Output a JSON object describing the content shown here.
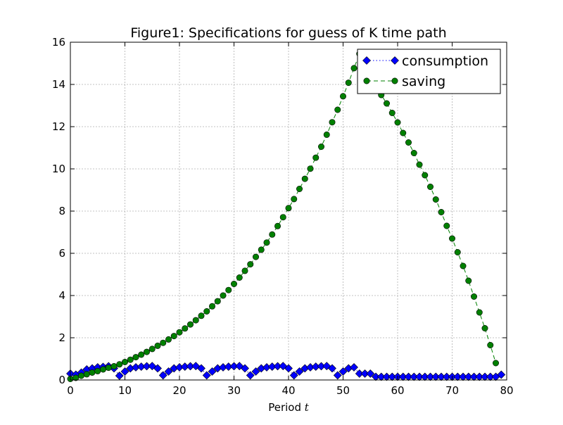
{
  "chart_data": {
    "type": "line",
    "title": "Figure1: Specifications for guess of K time path",
    "xlabel": "Period",
    "xlabel_var": "t",
    "ylabel": "",
    "xlim": [
      0,
      80
    ],
    "ylim": [
      0,
      16
    ],
    "xticks": [
      0,
      10,
      20,
      30,
      40,
      50,
      60,
      70,
      80
    ],
    "yticks": [
      0,
      2,
      4,
      6,
      8,
      10,
      12,
      14,
      16
    ],
    "grid": true,
    "legend_position": "top-right",
    "x": [
      0,
      1,
      2,
      3,
      4,
      5,
      6,
      7,
      8,
      9,
      10,
      11,
      12,
      13,
      14,
      15,
      16,
      17,
      18,
      19,
      20,
      21,
      22,
      23,
      24,
      25,
      26,
      27,
      28,
      29,
      30,
      31,
      32,
      33,
      34,
      35,
      36,
      37,
      38,
      39,
      40,
      41,
      42,
      43,
      44,
      45,
      46,
      47,
      48,
      49,
      50,
      51,
      52,
      53,
      54,
      55,
      56,
      57,
      58,
      59,
      60,
      61,
      62,
      63,
      64,
      65,
      66,
      67,
      68,
      69,
      70,
      71,
      72,
      73,
      74,
      75,
      76,
      77,
      78,
      79
    ],
    "series": [
      {
        "name": "consumption",
        "color": "#0000ff",
        "marker": "diamond",
        "linestyle": "dotted",
        "values": [
          0.3,
          0.25,
          0.35,
          0.5,
          0.55,
          0.6,
          0.62,
          0.65,
          0.55,
          0.2,
          0.4,
          0.55,
          0.6,
          0.63,
          0.65,
          0.66,
          0.55,
          0.22,
          0.4,
          0.55,
          0.6,
          0.63,
          0.65,
          0.66,
          0.55,
          0.22,
          0.4,
          0.55,
          0.6,
          0.63,
          0.65,
          0.66,
          0.55,
          0.22,
          0.4,
          0.55,
          0.6,
          0.63,
          0.65,
          0.66,
          0.55,
          0.22,
          0.4,
          0.55,
          0.6,
          0.63,
          0.65,
          0.66,
          0.55,
          0.22,
          0.4,
          0.55,
          0.6,
          0.3,
          0.3,
          0.3,
          0.15,
          0.15,
          0.15,
          0.15,
          0.15,
          0.15,
          0.15,
          0.15,
          0.15,
          0.15,
          0.15,
          0.15,
          0.15,
          0.15,
          0.15,
          0.15,
          0.15,
          0.15,
          0.15,
          0.15,
          0.15,
          0.15,
          0.15,
          0.25
        ]
      },
      {
        "name": "saving",
        "color": "#008000",
        "marker": "circle",
        "linestyle": "dashed",
        "values": [
          0.05,
          0.1,
          0.2,
          0.27,
          0.35,
          0.42,
          0.5,
          0.58,
          0.65,
          0.74,
          0.85,
          0.96,
          1.08,
          1.2,
          1.33,
          1.47,
          1.62,
          1.76,
          1.92,
          2.08,
          2.26,
          2.44,
          2.63,
          2.83,
          3.04,
          3.25,
          3.49,
          3.73,
          4.0,
          4.26,
          4.55,
          4.85,
          5.17,
          5.48,
          5.83,
          6.17,
          6.51,
          6.89,
          7.29,
          7.71,
          8.14,
          8.57,
          9.05,
          9.53,
          10.01,
          10.53,
          11.05,
          11.62,
          12.21,
          12.8,
          13.44,
          14.08,
          14.77,
          15.45,
          15.3,
          14.6,
          13.9,
          13.5,
          13.1,
          12.65,
          12.2,
          11.7,
          11.25,
          10.75,
          10.2,
          9.7,
          9.15,
          8.55,
          7.95,
          7.3,
          6.7,
          6.05,
          5.4,
          4.7,
          3.95,
          3.2,
          2.45,
          1.65,
          0.8,
          null
        ]
      }
    ]
  }
}
